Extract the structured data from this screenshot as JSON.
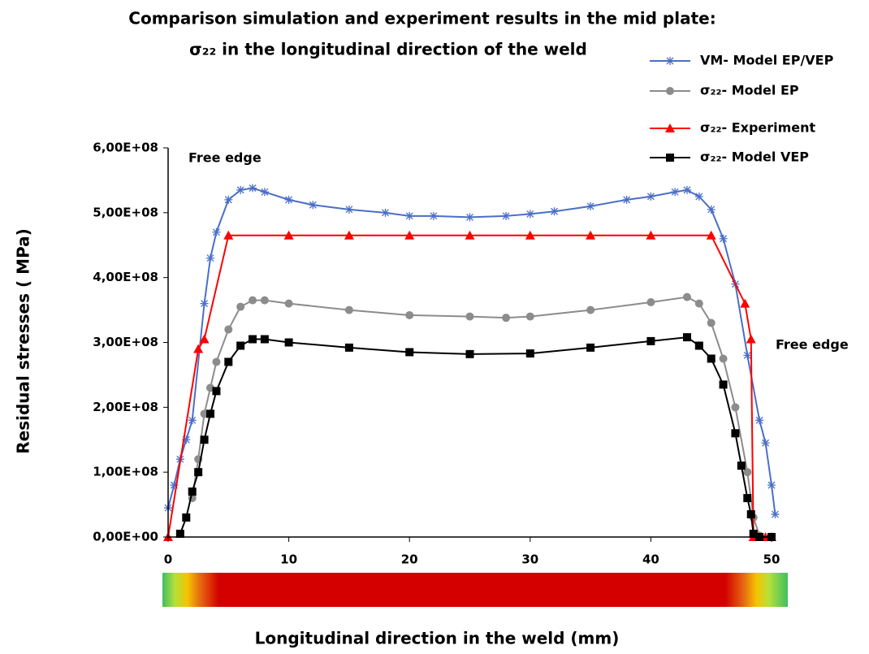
{
  "chart_data": {
    "type": "line",
    "title": "Comparison simulation and experiment results in the mid plate:",
    "subtitle": "σ₂₂ in the longitudinal direction of the weld",
    "x_label": "Longitudinal direction in the weld (mm)",
    "y_label": "Residual stresses ( MPa)",
    "annotations": [
      "Free edge",
      "Free edge"
    ],
    "xlim": [
      0,
      50
    ],
    "xticks": [
      0,
      10,
      20,
      30,
      40,
      50
    ],
    "ylim": [
      0,
      600000000
    ],
    "yticks": [
      {
        "value": 0,
        "label": "0,00E+00"
      },
      {
        "value": 100000000,
        "label": "1,00E+08"
      },
      {
        "value": 200000000,
        "label": "2,00E+08"
      },
      {
        "value": 300000000,
        "label": "3,00E+08"
      },
      {
        "value": 400000000,
        "label": "4,00E+08"
      },
      {
        "value": 500000000,
        "label": "5,00E+08"
      },
      {
        "value": 600000000,
        "label": "6,00E+08"
      }
    ],
    "series": [
      {
        "name": "VM- Model EP/VEP",
        "color": "#4a6fc7",
        "marker": "star",
        "x": [
          0,
          0.5,
          1,
          1.5,
          2,
          3,
          3.5,
          4,
          5,
          6,
          7,
          8,
          10,
          12,
          15,
          18,
          20,
          22,
          25,
          28,
          30,
          32,
          35,
          38,
          40,
          42,
          43,
          44,
          45,
          46,
          47,
          48,
          49,
          49.5,
          50,
          50.3
        ],
        "values": [
          45000000,
          80000000,
          120000000,
          150000000,
          180000000,
          360000000,
          430000000,
          470000000,
          520000000,
          535000000,
          538000000,
          532000000,
          520000000,
          512000000,
          505000000,
          500000000,
          495000000,
          495000000,
          493000000,
          495000000,
          498000000,
          502000000,
          510000000,
          520000000,
          525000000,
          532000000,
          535000000,
          525000000,
          505000000,
          460000000,
          390000000,
          280000000,
          180000000,
          145000000,
          80000000,
          35000000
        ]
      },
      {
        "name": "σ₂₂- Model EP",
        "color": "#8c8c8c",
        "marker": "circle",
        "x": [
          2,
          2.5,
          3,
          3.5,
          4,
          5,
          6,
          7,
          8,
          10,
          15,
          20,
          25,
          28,
          30,
          35,
          40,
          43,
          44,
          45,
          46,
          47,
          48,
          48.5,
          49
        ],
        "values": [
          60000000,
          120000000,
          190000000,
          230000000,
          270000000,
          320000000,
          355000000,
          365000000,
          365000000,
          360000000,
          350000000,
          342000000,
          340000000,
          338000000,
          340000000,
          350000000,
          362000000,
          370000000,
          360000000,
          330000000,
          275000000,
          200000000,
          100000000,
          30000000,
          2000000
        ]
      },
      {
        "name": "σ₂₂- Experiment",
        "color": "#ff0000",
        "marker": "triangle",
        "x": [
          0,
          2.5,
          3,
          5,
          10,
          15,
          20,
          25,
          30,
          35,
          40,
          45,
          47.8,
          48.3,
          48.5,
          49,
          49.5,
          50
        ],
        "values": [
          0,
          290000000,
          305000000,
          465000000,
          465000000,
          465000000,
          465000000,
          465000000,
          465000000,
          465000000,
          465000000,
          465000000,
          360000000,
          305000000,
          0,
          0,
          0,
          0
        ]
      },
      {
        "name": "σ₂₂- Model VEP",
        "color": "#000000",
        "marker": "square",
        "x": [
          1,
          1.5,
          2,
          2.5,
          3,
          3.5,
          4,
          5,
          6,
          7,
          8,
          10,
          15,
          20,
          25,
          30,
          35,
          40,
          43,
          44,
          45,
          46,
          47,
          47.5,
          48,
          48.3,
          48.5,
          49,
          50
        ],
        "values": [
          5000000,
          30000000,
          70000000,
          100000000,
          150000000,
          190000000,
          225000000,
          270000000,
          295000000,
          305000000,
          305000000,
          300000000,
          292000000,
          285000000,
          282000000,
          283000000,
          292000000,
          302000000,
          308000000,
          295000000,
          275000000,
          235000000,
          160000000,
          110000000,
          60000000,
          35000000,
          5000000,
          0,
          0
        ]
      }
    ]
  }
}
